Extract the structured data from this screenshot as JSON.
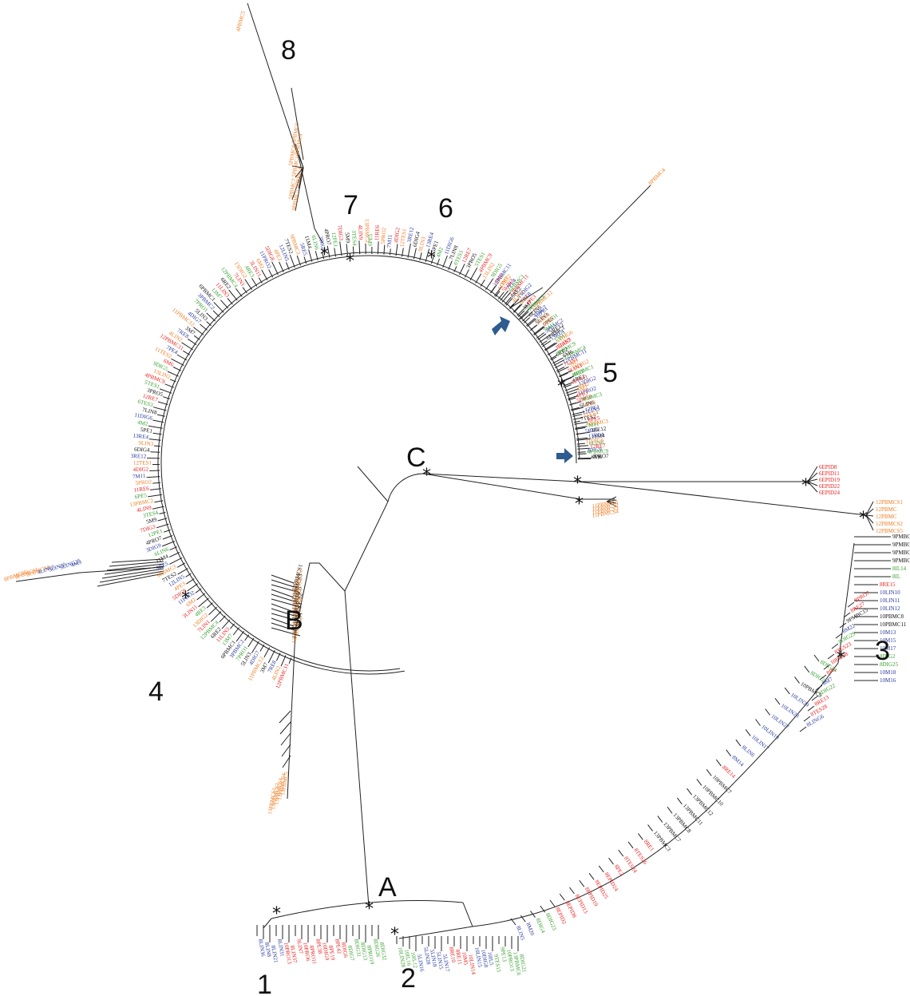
{
  "figure": {
    "clade_labels": [
      {
        "id": "1",
        "text": "1"
      },
      {
        "id": "2",
        "text": "2"
      },
      {
        "id": "3",
        "text": "3"
      },
      {
        "id": "4",
        "text": "4"
      },
      {
        "id": "5",
        "text": "5"
      },
      {
        "id": "6",
        "text": "6"
      },
      {
        "id": "7",
        "text": "7"
      },
      {
        "id": "8",
        "text": "8"
      },
      {
        "id": "A",
        "text": "A"
      },
      {
        "id": "B",
        "text": "B"
      },
      {
        "id": "C",
        "text": "C"
      }
    ],
    "node_marker": "*",
    "colors": {
      "red": "#e8201f",
      "blue": "#2a3a9c",
      "green": "#3aa131",
      "orange": "#ef7d22",
      "black": "#111111",
      "arrow": "#2f5c8f"
    },
    "leaf_groups": {
      "c_epid": [
        "6EPID8",
        "6EPID11",
        "6EPID19",
        "6EPID22",
        "6EPID24"
      ],
      "c_pbmc_far": [
        "12PBMCS1",
        "12PBMC",
        "12PBMC",
        "12PBMCS2",
        "12PBMCS5"
      ],
      "c_pbmc_near": [
        "11PBMCS1",
        "11PBMCS2",
        "11PBMCS3",
        "11PBMCS4"
      ],
      "clade3_top": [
        "9PMBC7",
        "9PMBCC9",
        "9PMBCC10",
        "9PMBC16",
        "8IL14",
        "8IL",
        "8RE15",
        "10LIN10",
        "10LIN11",
        "10LIN12",
        "10PBMC8",
        "10PBMC11",
        "10M13",
        "10M15",
        "10M17",
        "8DIG2",
        "8DIG25",
        "10M18",
        "10M16"
      ],
      "clade3_mid": [
        "8LING6",
        "8TES28",
        "8RE13",
        "8DIG22",
        "8M7",
        "8PE",
        "10PRO8",
        "8TES23",
        "8DIG29",
        "8M22",
        "9PMBC15",
        "8RE27",
        "8PRO7"
      ],
      "clade3_arc": [
        "8LIN5",
        "8M20",
        "8DIG4",
        "8DIG23",
        "8EPID2",
        "8EPID8",
        "8EPID13",
        "8EPID19",
        "8EPID25",
        "8EPID24",
        "8PE2",
        "8TES24",
        "8TES26",
        "8RE1",
        "13PBMC3",
        "13PBMC7",
        "13PBMC8",
        "13PBMC11",
        "13PBMC12",
        "10PBMC10",
        "10PBMC7",
        "8RE14",
        "8M14",
        "8LIN6",
        "10LIN17",
        "10LIN19",
        "10LIN27",
        "10LIN28",
        "10LIN29",
        "10PBMC9",
        "8DIG21",
        "8DIG24"
      ],
      "clade1": [
        "8LIN36",
        "8LIN8",
        "8LIN21",
        "8LIN31",
        "10PRO13",
        "8LIN37",
        "9LIN7",
        "10PRO6",
        "8PRO11",
        "8PE38",
        "10DIG9",
        "8PE19",
        "8PE42",
        "8DIG6",
        "8DIG7",
        "8DIG31",
        "8DIG13",
        "8PRO19",
        "8DIG26",
        "8DIG32"
      ],
      "clade2": [
        "10LIN28",
        "10IL16",
        "10IL12",
        "5LIN16",
        "5LIN28",
        "5LIN18",
        "5LIN15",
        "5LIN17",
        "8RE10",
        "8RE11",
        "10M5",
        "10LIN14",
        "10LIN15",
        "10DIG8",
        "10IL5",
        "9TES15",
        "9PE13",
        "10PRO13",
        "13PBMC6",
        "8DIG21"
      ],
      "clade8": [
        "4PBMC5",
        "5PBMC5",
        "5PBMC9",
        "5PBMC8",
        "5PBMC10",
        "5PBMC4",
        "5PBMC7",
        "9PBMC5"
      ],
      "clade4_out": [
        "8PBMCS5",
        "8PBMCS1",
        "8PBMCS4",
        "4LIN15",
        "5LIN20",
        "5LING25",
        "4M5"
      ],
      "b_branch": [
        "13PBMCS1",
        "13PBMCS2",
        "13PBMCS3",
        "13PBMCS4",
        "13PBMC5"
      ],
      "circle": [
        "12PBMC11",
        "4LIN2",
        "7RE8",
        "3M7",
        "11PBMC12",
        "4DIG7",
        "5LIN3",
        "7PRO1",
        "3PBMC2",
        "6PBMC1",
        "13M7",
        "11LIN3",
        "6RE2",
        "12PBMC4",
        "7LIN1",
        "13DIG2",
        "4RE3",
        "3LIN11",
        "6M2",
        "11PRO2",
        "5DIG8",
        "4PE3",
        "12LIN5",
        "7TES2",
        "9PBMC3",
        "5RE5",
        "11M4",
        "6LIN6",
        "3DIG9",
        "4PRO7",
        "12PE1",
        "7DIG3",
        "5M9",
        "3TES4",
        "4LIN9",
        "13PBMC2",
        "6PE5",
        "11RE6",
        "5PRO2",
        "7M11",
        "4DIG2",
        "12TES1",
        "3RE12",
        "6DIG4",
        "9LIN3",
        "13RE4",
        "5PE1",
        "4M2",
        "11DIG6",
        "7LIN8",
        "6TES3",
        "12RE7",
        "3PRO5",
        "5TES1",
        "4PBMC9",
        "13LIN2",
        "9DIG5",
        "6M6",
        "11TES2",
        "7PE4"
      ]
    }
  }
}
